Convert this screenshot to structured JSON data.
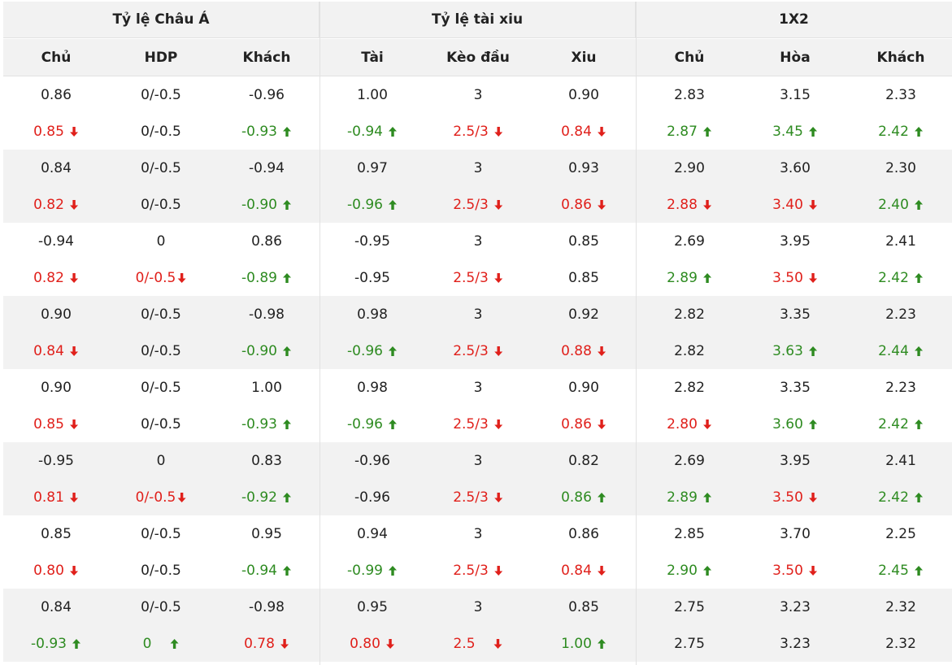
{
  "headers": {
    "groups": [
      "Tỷ lệ Châu Á",
      "Tỷ lệ tài xiu",
      "1X2"
    ],
    "columns": [
      "Chủ",
      "HDP",
      "Khách",
      "Tài",
      "Kèo đầu",
      "Xiu",
      "Chủ",
      "Hòa",
      "Khách"
    ]
  },
  "colors": {
    "down": "#e0201b",
    "up": "#2e8b21",
    "header_bg": "#f2f2f2",
    "alt_bg": "#f2f2f2"
  },
  "icons": {
    "down": "arrow-down-icon",
    "up": "arrow-up-icon"
  },
  "rows": [
    {
      "cells": [
        [
          "0.86",
          ""
        ],
        [
          "0/-0.5",
          ""
        ],
        [
          "-0.96",
          ""
        ],
        [
          "1.00",
          ""
        ],
        [
          "3",
          ""
        ],
        [
          "0.90",
          ""
        ],
        [
          "2.83",
          ""
        ],
        [
          "3.15",
          ""
        ],
        [
          "2.33",
          ""
        ]
      ]
    },
    {
      "cells": [
        [
          "0.85",
          "down"
        ],
        [
          "0/-0.5",
          ""
        ],
        [
          "-0.93",
          "up"
        ],
        [
          "-0.94",
          "up"
        ],
        [
          "2.5/3",
          "down"
        ],
        [
          "0.84",
          "down"
        ],
        [
          "2.87",
          "up"
        ],
        [
          "3.45",
          "up"
        ],
        [
          "2.42",
          "up"
        ]
      ]
    },
    {
      "cells": [
        [
          "0.84",
          ""
        ],
        [
          "0/-0.5",
          ""
        ],
        [
          "-0.94",
          ""
        ],
        [
          "0.97",
          ""
        ],
        [
          "3",
          ""
        ],
        [
          "0.93",
          ""
        ],
        [
          "2.90",
          ""
        ],
        [
          "3.60",
          ""
        ],
        [
          "2.30",
          ""
        ]
      ]
    },
    {
      "cells": [
        [
          "0.82",
          "down"
        ],
        [
          "0/-0.5",
          ""
        ],
        [
          "-0.90",
          "up"
        ],
        [
          "-0.96",
          "up"
        ],
        [
          "2.5/3",
          "down"
        ],
        [
          "0.86",
          "down"
        ],
        [
          "2.88",
          "down"
        ],
        [
          "3.40",
          "down"
        ],
        [
          "2.40",
          "up"
        ]
      ]
    },
    {
      "cells": [
        [
          "-0.94",
          ""
        ],
        [
          "0",
          ""
        ],
        [
          "0.86",
          ""
        ],
        [
          "-0.95",
          ""
        ],
        [
          "3",
          ""
        ],
        [
          "0.85",
          ""
        ],
        [
          "2.69",
          ""
        ],
        [
          "3.95",
          ""
        ],
        [
          "2.41",
          ""
        ]
      ]
    },
    {
      "cells": [
        [
          "0.82",
          "down"
        ],
        [
          "0/-0.5",
          "down-tight"
        ],
        [
          "-0.89",
          "up"
        ],
        [
          "-0.95",
          ""
        ],
        [
          "2.5/3",
          "down"
        ],
        [
          "0.85",
          ""
        ],
        [
          "2.89",
          "up"
        ],
        [
          "3.50",
          "down"
        ],
        [
          "2.42",
          "up"
        ]
      ]
    },
    {
      "cells": [
        [
          "0.90",
          ""
        ],
        [
          "0/-0.5",
          ""
        ],
        [
          "-0.98",
          ""
        ],
        [
          "0.98",
          ""
        ],
        [
          "3",
          ""
        ],
        [
          "0.92",
          ""
        ],
        [
          "2.82",
          ""
        ],
        [
          "3.35",
          ""
        ],
        [
          "2.23",
          ""
        ]
      ]
    },
    {
      "cells": [
        [
          "0.84",
          "down"
        ],
        [
          "0/-0.5",
          ""
        ],
        [
          "-0.90",
          "up"
        ],
        [
          "-0.96",
          "up"
        ],
        [
          "2.5/3",
          "down"
        ],
        [
          "0.88",
          "down"
        ],
        [
          "2.82",
          ""
        ],
        [
          "3.63",
          "up"
        ],
        [
          "2.44",
          "up"
        ]
      ]
    },
    {
      "cells": [
        [
          "0.90",
          ""
        ],
        [
          "0/-0.5",
          ""
        ],
        [
          "1.00",
          ""
        ],
        [
          "0.98",
          ""
        ],
        [
          "3",
          ""
        ],
        [
          "0.90",
          ""
        ],
        [
          "2.82",
          ""
        ],
        [
          "3.35",
          ""
        ],
        [
          "2.23",
          ""
        ]
      ]
    },
    {
      "cells": [
        [
          "0.85",
          "down"
        ],
        [
          "0/-0.5",
          ""
        ],
        [
          "-0.93",
          "up"
        ],
        [
          "-0.96",
          "up"
        ],
        [
          "2.5/3",
          "down"
        ],
        [
          "0.86",
          "down"
        ],
        [
          "2.80",
          "down"
        ],
        [
          "3.60",
          "up"
        ],
        [
          "2.42",
          "up"
        ]
      ]
    },
    {
      "cells": [
        [
          "-0.95",
          ""
        ],
        [
          "0",
          ""
        ],
        [
          "0.83",
          ""
        ],
        [
          "-0.96",
          ""
        ],
        [
          "3",
          ""
        ],
        [
          "0.82",
          ""
        ],
        [
          "2.69",
          ""
        ],
        [
          "3.95",
          ""
        ],
        [
          "2.41",
          ""
        ]
      ]
    },
    {
      "cells": [
        [
          "0.81",
          "down"
        ],
        [
          "0/-0.5",
          "down-tight"
        ],
        [
          "-0.92",
          "up"
        ],
        [
          "-0.96",
          ""
        ],
        [
          "2.5/3",
          "down"
        ],
        [
          "0.86",
          "up"
        ],
        [
          "2.89",
          "up"
        ],
        [
          "3.50",
          "down"
        ],
        [
          "2.42",
          "up"
        ]
      ]
    },
    {
      "cells": [
        [
          "0.85",
          ""
        ],
        [
          "0/-0.5",
          ""
        ],
        [
          "0.95",
          ""
        ],
        [
          "0.94",
          ""
        ],
        [
          "3",
          ""
        ],
        [
          "0.86",
          ""
        ],
        [
          "2.85",
          ""
        ],
        [
          "3.70",
          ""
        ],
        [
          "2.25",
          ""
        ]
      ]
    },
    {
      "cells": [
        [
          "0.80",
          "down"
        ],
        [
          "0/-0.5",
          ""
        ],
        [
          "-0.94",
          "up"
        ],
        [
          "-0.99",
          "up"
        ],
        [
          "2.5/3",
          "down"
        ],
        [
          "0.84",
          "down"
        ],
        [
          "2.90",
          "up"
        ],
        [
          "3.50",
          "down"
        ],
        [
          "2.45",
          "up"
        ]
      ]
    },
    {
      "cells": [
        [
          "0.84",
          ""
        ],
        [
          "0/-0.5",
          ""
        ],
        [
          "-0.98",
          ""
        ],
        [
          "0.95",
          ""
        ],
        [
          "3",
          ""
        ],
        [
          "0.85",
          ""
        ],
        [
          "2.75",
          ""
        ],
        [
          "3.23",
          ""
        ],
        [
          "2.32",
          ""
        ]
      ]
    },
    {
      "cells": [
        [
          "-0.93",
          "up"
        ],
        [
          "0",
          "up-wide"
        ],
        [
          "0.78",
          "down"
        ],
        [
          "0.80",
          "down"
        ],
        [
          "2.5",
          "down-wide"
        ],
        [
          "1.00",
          "up"
        ],
        [
          "2.75",
          ""
        ],
        [
          "3.23",
          ""
        ],
        [
          "2.32",
          ""
        ]
      ]
    }
  ]
}
